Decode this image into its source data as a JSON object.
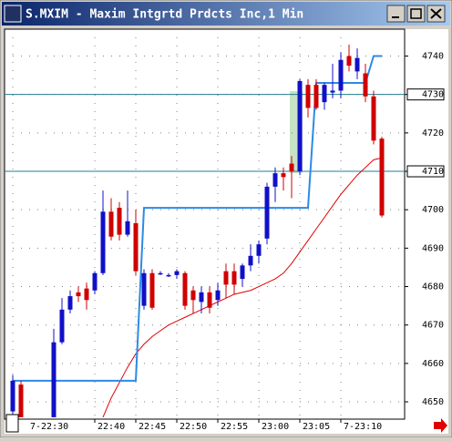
{
  "window_title": "S.MXIM - Maxim Intgrtd Prdcts Inc,1 Min",
  "chart_data": {
    "type": "candlestick",
    "categories": [
      "7-22:30",
      null,
      null,
      null,
      null,
      null,
      null,
      null,
      null,
      null,
      "22:40",
      null,
      null,
      null,
      null,
      "22:45",
      null,
      null,
      null,
      null,
      "22:50",
      null,
      null,
      null,
      null,
      "22:55",
      null,
      null,
      null,
      null,
      "23:00",
      null,
      null,
      null,
      null,
      "23:05",
      null,
      null,
      null,
      null,
      "7-23:10",
      null,
      null,
      null,
      null,
      null
    ],
    "open": [
      4647.5,
      4654.5,
      null,
      null,
      null,
      4646,
      4665.5,
      4674,
      4678.5,
      4679.5,
      4679,
      4683.5,
      4699.5,
      4700.5,
      4693.5,
      4696.5,
      4675,
      4683.5,
      4683.5,
      4683,
      4683,
      4683.5,
      4679,
      4676,
      4678.5,
      4676.5,
      4684,
      4684,
      4682,
      4685.5,
      4688,
      4692.5,
      4706,
      4709.5,
      4712,
      4710,
      4732.5,
      4732.5,
      4728,
      4730.5,
      4731,
      4740,
      4736,
      4735.5,
      4729.5,
      4718.5
    ],
    "high": [
      4657,
      4655.5,
      null,
      null,
      null,
      4669,
      4677,
      4679,
      4680,
      4681,
      4684,
      4705,
      4703,
      4702,
      4705,
      4700,
      4684.5,
      4684.5,
      4684,
      4683.5,
      4684.5,
      4684,
      4680,
      4680,
      4680,
      4681,
      4686,
      4686,
      4686,
      4691,
      4692,
      4707,
      4711,
      4711,
      4714,
      4734,
      4734,
      4734,
      4733,
      4738,
      4741,
      4743,
      4742,
      4738,
      4731,
      4719
    ],
    "low": [
      4646,
      4646,
      null,
      null,
      null,
      4646,
      4665,
      4673,
      4676,
      4674,
      4678,
      4683,
      4692,
      4692,
      4693,
      4683,
      4674,
      4674,
      4683,
      4682.5,
      4682,
      4674,
      4673,
      4673,
      4673,
      4675,
      4677,
      4678,
      4680,
      4684,
      4686,
      4691,
      4702,
      4705,
      4703,
      4709,
      4724,
      4726,
      4726,
      4729,
      4729,
      4736,
      4734,
      4728,
      4717,
      4698
    ],
    "close": [
      4655.5,
      4646,
      null,
      null,
      null,
      4665.5,
      4674,
      4677.5,
      4677.5,
      4676.5,
      4683.5,
      4699.5,
      4693,
      4693.5,
      4697,
      4684,
      4683.5,
      4674.5,
      4683.5,
      4683,
      4684,
      4675,
      4676.5,
      4678.5,
      4674.5,
      4679,
      4680.5,
      4680.5,
      4685.5,
      4688,
      4691,
      4706,
      4709.5,
      4708.5,
      4710,
      4733.5,
      4726.5,
      4726.5,
      4732.5,
      4731,
      4739,
      4737.5,
      4739.5,
      4729.5,
      4718,
      4698.5
    ],
    "up_color": "#1010c8",
    "down_color": "#d00000",
    "stop_line": {
      "color": "#2b8be6",
      "values": [
        4655.5,
        4655.5,
        4655.5,
        4655.5,
        4655.5,
        4655.5,
        4655.5,
        4655.5,
        4655.5,
        4655.5,
        4655.5,
        4655.5,
        4655.5,
        4655.5,
        4655.5,
        4655.5,
        4700.5,
        4700.5,
        4700.5,
        4700.5,
        4700.5,
        4700.5,
        4700.5,
        4700.5,
        4700.5,
        4700.5,
        4700.5,
        4700.5,
        4700.5,
        4700.5,
        4700.5,
        4700.5,
        4700.5,
        4700.5,
        4700.5,
        4700.5,
        4700.5,
        4733,
        4733,
        4733,
        4733,
        4733,
        4733,
        4733,
        4740,
        4740
      ]
    },
    "ma_line": {
      "color": "#e00000",
      "values": [
        null,
        null,
        null,
        null,
        null,
        null,
        null,
        null,
        null,
        null,
        null,
        4646,
        4651,
        4655,
        4659,
        4662.5,
        4665,
        4667,
        4668.5,
        4670,
        4671,
        4672,
        4673,
        4674,
        4675,
        4676,
        4677,
        4678,
        4678.5,
        4679,
        4680,
        4681,
        4682,
        4683.5,
        4686,
        4689,
        4692,
        4695,
        4698,
        4701,
        4704,
        4706.5,
        4709,
        4711,
        4713,
        4713.5
      ]
    },
    "hlines": [
      4730,
      4710
    ],
    "hline_color": "#1f7f8f",
    "ylim": [
      4645.5,
      4747
    ],
    "yticks": [
      4650,
      4660,
      4670,
      4680,
      4690,
      4700,
      4710,
      4720,
      4730,
      4740
    ],
    "grid": true
  }
}
